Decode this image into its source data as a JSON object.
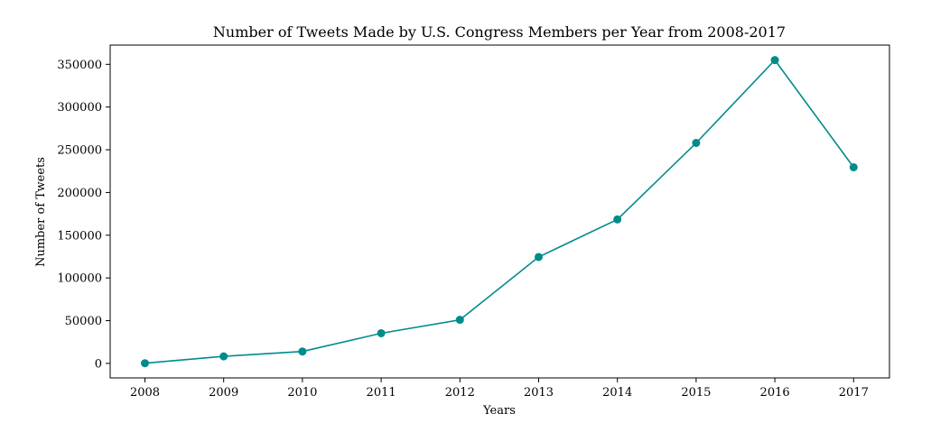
{
  "chart_data": {
    "type": "line",
    "title": "Number of Tweets Made by U.S. Congress Members per Year from 2008-2017",
    "xlabel": "Years",
    "ylabel": "Number of Tweets",
    "x": [
      "2008",
      "2009",
      "2010",
      "2011",
      "2012",
      "2013",
      "2014",
      "2015",
      "2016",
      "2017"
    ],
    "series": [
      {
        "values": [
          200,
          8200,
          13900,
          35300,
          51000,
          124500,
          168500,
          258000,
          355000,
          229500
        ],
        "color": "#008b8b"
      }
    ],
    "yticks": [
      0,
      50000,
      100000,
      150000,
      200000,
      250000,
      300000,
      350000
    ],
    "ylim": [
      -17000,
      372500
    ],
    "grid": false,
    "marker": "circle"
  }
}
